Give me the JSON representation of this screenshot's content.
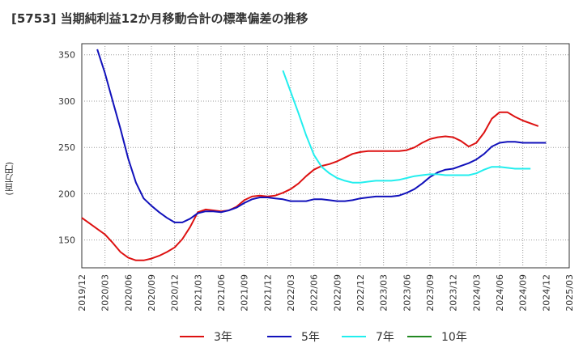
{
  "title": "[5753]  当期純利益12か月移動合計の標準偏差の推移",
  "ylabel": "(百万円)",
  "colors": {
    "3y": "#dd1111",
    "5y": "#1111bb",
    "7y": "#22eeee",
    "10y": "#228822"
  },
  "chart_data": {
    "type": "line",
    "ylim": [
      120,
      362
    ],
    "y_ticks": [
      150,
      200,
      250,
      300,
      350
    ],
    "x_ticks": [
      "2019/12",
      "2020/03",
      "2020/06",
      "2020/09",
      "2020/12",
      "2021/03",
      "2021/06",
      "2021/09",
      "2021/12",
      "2022/03",
      "2022/06",
      "2022/09",
      "2022/12",
      "2023/03",
      "2023/06",
      "2023/09",
      "2023/12",
      "2024/03",
      "2024/06",
      "2024/09",
      "2024/12",
      "2025/03"
    ],
    "grid": true,
    "legend": "bottom",
    "series": [
      {
        "name": "3年",
        "color_key": "3y",
        "start": "2019/12",
        "values": [
          174,
          168,
          162,
          156,
          147,
          137,
          131,
          128,
          128,
          130,
          133,
          137,
          142,
          151,
          164,
          180,
          183,
          182,
          181,
          182,
          186,
          193,
          197,
          198,
          197,
          198,
          201,
          205,
          211,
          219,
          226,
          230,
          232,
          235,
          239,
          243,
          245,
          246,
          246,
          246,
          246,
          246,
          247,
          250,
          255,
          259,
          261,
          262,
          261,
          257,
          251,
          255,
          266,
          281,
          288,
          288,
          283,
          279,
          276,
          273
        ]
      },
      {
        "name": "5年",
        "color_key": "5y",
        "start": "2020/02",
        "values": [
          356,
          330,
          300,
          270,
          238,
          212,
          195,
          187,
          180,
          174,
          169,
          169,
          173,
          179,
          181,
          181,
          180,
          182,
          185,
          190,
          194,
          196,
          196,
          195,
          194,
          192,
          192,
          192,
          194,
          194,
          193,
          192,
          192,
          193,
          195,
          196,
          197,
          197,
          197,
          198,
          201,
          205,
          211,
          218,
          223,
          226,
          227,
          230,
          233,
          237,
          243,
          251,
          255,
          256,
          256,
          255,
          255,
          255,
          255
        ]
      },
      {
        "name": "7年",
        "color_key": "7y",
        "start": "2022/02",
        "values": [
          333,
          310,
          287,
          263,
          242,
          229,
          222,
          217,
          214,
          212,
          212,
          213,
          214,
          214,
          214,
          215,
          217,
          219,
          220,
          221,
          221,
          220,
          220,
          220,
          220,
          222,
          226,
          229,
          229,
          228,
          227,
          227,
          227
        ]
      },
      {
        "name": "10年",
        "color_key": "10y",
        "start": "2024/12",
        "values": []
      }
    ]
  }
}
